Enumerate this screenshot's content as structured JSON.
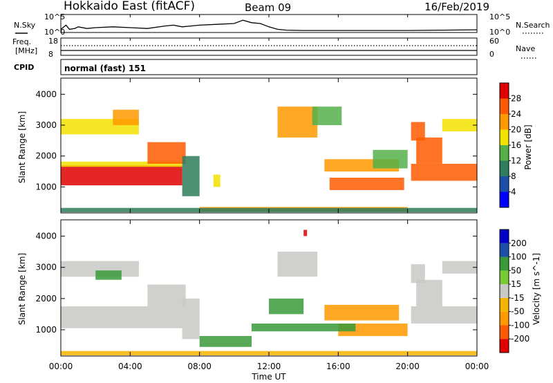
{
  "header": {
    "station": "Hokkaido East (fitACF)",
    "beam": "Beam 09",
    "date": "16/Feb/2019"
  },
  "noise_panel": {
    "left_label": "N.Sky",
    "right_label": "N.Search",
    "left_ticks": [
      "10^5",
      "10^0"
    ],
    "right_ticks": [
      "10^5",
      "10^0"
    ]
  },
  "freq_panel": {
    "left_label_line1": "Freq.",
    "left_label_line2": "[MHz]",
    "right_label": "Nave",
    "left_ticks": [
      "18",
      "8"
    ],
    "right_ticks": [
      "60",
      "0"
    ]
  },
  "cpid": {
    "label": "CPID",
    "value": "normal (fast) 151"
  },
  "x_axis": {
    "label": "Time UT",
    "ticks": [
      "00:00",
      "04:00",
      "08:00",
      "12:00",
      "16:00",
      "20:00",
      "00:00"
    ]
  },
  "colors": {
    "power": [
      "#0000ff",
      "#1c4fa8",
      "#2e7d5c",
      "#55b04a",
      "#f2e200",
      "#ff9900",
      "#ff5a00",
      "#e00000"
    ],
    "velocity": [
      "#e00000",
      "#ff5a00",
      "#ff9900",
      "#f5b400",
      "#c8c8c4",
      "#77cc33",
      "#3a9a3a",
      "#1c4fa8",
      "#0000c8"
    ]
  },
  "chart_data": [
    {
      "type": "line",
      "title": "N.Sky / N.Search noise",
      "x_range_hours": [
        0,
        24
      ],
      "series": [
        {
          "name": "N.Sky",
          "x": [
            0,
            0.3,
            0.5,
            0.8,
            1.0,
            1.5,
            2,
            3,
            4,
            5,
            6,
            6.5,
            7,
            7.5,
            8,
            9,
            10,
            10.5,
            11,
            11.5,
            12,
            12.5,
            13,
            14,
            16,
            18,
            20,
            22,
            24
          ],
          "y": [
            0.15,
            0.4,
            0.15,
            0.2,
            0.3,
            0.2,
            0.25,
            0.3,
            0.25,
            0.2,
            0.35,
            0.4,
            0.3,
            0.35,
            0.4,
            0.45,
            0.5,
            0.7,
            0.55,
            0.5,
            0.3,
            0.15,
            0.1,
            0.08,
            0.08,
            0.08,
            0.08,
            0.1,
            0.12
          ]
        }
      ]
    },
    {
      "type": "line",
      "title": "Freq / Nave",
      "x_range_hours": [
        0,
        24
      ],
      "series": [
        {
          "name": "Freq",
          "x": [
            0,
            24
          ],
          "y": [
            10.3,
            10.3
          ]
        },
        {
          "name": "Nave",
          "x": [
            0,
            24
          ],
          "y": [
            28,
            28
          ]
        }
      ]
    },
    {
      "type": "heatmap",
      "title": "Power",
      "xlabel": "Time UT",
      "ylabel": "Slant Range [km]",
      "xlim": [
        0,
        24
      ],
      "ylim": [
        180,
        4500
      ],
      "yticks": [
        1000,
        2000,
        3000,
        4000
      ],
      "colorbar": {
        "label": "Power [dB]",
        "ticks": [
          4,
          8,
          12,
          16,
          20,
          24,
          28
        ],
        "range": [
          0,
          32
        ]
      },
      "regions": [
        {
          "t0": 0.0,
          "t1": 7.0,
          "r0": 1050,
          "r1": 1700,
          "value": 29
        },
        {
          "t0": 0.0,
          "t1": 7.0,
          "r0": 1650,
          "r1": 1820,
          "value": 18
        },
        {
          "t0": 5.0,
          "t1": 7.2,
          "r0": 1750,
          "r1": 2450,
          "value": 24
        },
        {
          "t0": 0.0,
          "t1": 4.5,
          "r0": 2700,
          "r1": 3200,
          "value": 17
        },
        {
          "t0": 3.0,
          "t1": 4.5,
          "r0": 3000,
          "r1": 3500,
          "value": 20
        },
        {
          "t0": 7.0,
          "t1": 8.0,
          "r0": 700,
          "r1": 2000,
          "value": 10
        },
        {
          "t0": 8.8,
          "t1": 9.2,
          "r0": 1000,
          "r1": 1400,
          "value": 18
        },
        {
          "t0": 12.5,
          "t1": 14.8,
          "r0": 2600,
          "r1": 3600,
          "value": 23
        },
        {
          "t0": 14.5,
          "t1": 16.2,
          "r0": 3000,
          "r1": 3600,
          "value": 14
        },
        {
          "t0": 15.2,
          "t1": 19.5,
          "r0": 1500,
          "r1": 1900,
          "value": 22
        },
        {
          "t0": 15.5,
          "t1": 19.8,
          "r0": 900,
          "r1": 1300,
          "value": 24
        },
        {
          "t0": 18.0,
          "t1": 20.0,
          "r0": 1600,
          "r1": 2200,
          "value": 13
        },
        {
          "t0": 20.2,
          "t1": 24.0,
          "r0": 1200,
          "r1": 1750,
          "value": 27
        },
        {
          "t0": 20.5,
          "t1": 22.0,
          "r0": 1750,
          "r1": 2600,
          "value": 24
        },
        {
          "t0": 20.2,
          "t1": 21.0,
          "r0": 2500,
          "r1": 3100,
          "value": 26
        },
        {
          "t0": 22.0,
          "t1": 24.0,
          "r0": 2800,
          "r1": 3200,
          "value": 18
        },
        {
          "t0": 8.0,
          "t1": 20.0,
          "r0": 200,
          "r1": 350,
          "value": 22
        },
        {
          "t0": 0.0,
          "t1": 24.0,
          "r0": 180,
          "r1": 320,
          "value": 10
        }
      ]
    },
    {
      "type": "heatmap",
      "title": "Velocity",
      "xlabel": "Time UT",
      "ylabel": "Slant Range [km]",
      "xlim": [
        0,
        24
      ],
      "ylim": [
        180,
        4500
      ],
      "yticks": [
        1000,
        2000,
        3000,
        4000
      ],
      "colorbar": {
        "label": "Velocity [m s^-1]",
        "ticks": [
          200,
          100,
          50,
          15,
          -15,
          -50,
          -100,
          -200
        ],
        "range": [
          -250,
          250
        ]
      },
      "regions": [
        {
          "t0": 0.0,
          "t1": 7.0,
          "r0": 1050,
          "r1": 1750,
          "value": 0
        },
        {
          "t0": 5.0,
          "t1": 7.2,
          "r0": 1750,
          "r1": 2450,
          "value": 0
        },
        {
          "t0": 0.0,
          "t1": 4.5,
          "r0": 2700,
          "r1": 3200,
          "value": 0
        },
        {
          "t0": 2.0,
          "t1": 3.5,
          "r0": 2600,
          "r1": 2900,
          "value": 70
        },
        {
          "t0": 7.0,
          "t1": 8.0,
          "r0": 700,
          "r1": 2000,
          "value": 0
        },
        {
          "t0": 8.0,
          "t1": 11.0,
          "r0": 450,
          "r1": 800,
          "value": 70
        },
        {
          "t0": 12.5,
          "t1": 14.8,
          "r0": 2700,
          "r1": 3500,
          "value": 0
        },
        {
          "t0": 12.0,
          "t1": 14.0,
          "r0": 1500,
          "r1": 2000,
          "value": 60
        },
        {
          "t0": 15.2,
          "t1": 19.5,
          "r0": 1300,
          "r1": 1800,
          "value": -60
        },
        {
          "t0": 16.0,
          "t1": 20.0,
          "r0": 800,
          "r1": 1200,
          "value": -90
        },
        {
          "t0": 11.0,
          "t1": 17.0,
          "r0": 950,
          "r1": 1200,
          "value": 70
        },
        {
          "t0": 20.2,
          "t1": 24.0,
          "r0": 1200,
          "r1": 1750,
          "value": 0
        },
        {
          "t0": 20.5,
          "t1": 22.0,
          "r0": 1750,
          "r1": 2600,
          "value": 0
        },
        {
          "t0": 20.2,
          "t1": 21.0,
          "r0": 2500,
          "r1": 3100,
          "value": 0
        },
        {
          "t0": 22.0,
          "t1": 24.0,
          "r0": 2800,
          "r1": 3200,
          "value": 0
        },
        {
          "t0": 0.0,
          "t1": 24.0,
          "r0": 180,
          "r1": 320,
          "value": -40
        },
        {
          "t0": 14.0,
          "t1": 14.2,
          "r0": 4000,
          "r1": 4200,
          "value": -220
        }
      ]
    }
  ]
}
